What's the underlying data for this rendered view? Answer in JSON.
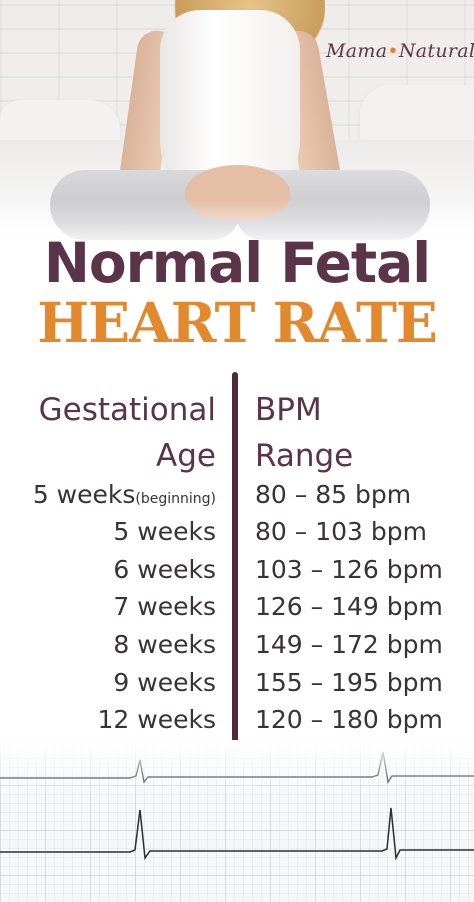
{
  "brand": {
    "logo_left": "Mama",
    "logo_dot": "•",
    "logo_right": "Natural"
  },
  "title": {
    "line1": "Normal Fetal",
    "line2": "HEART RATE"
  },
  "table": {
    "col_age_header_1": "Gestational",
    "col_age_header_2": "Age",
    "col_bpm_header_1": "BPM",
    "col_bpm_header_2": "Range",
    "rows": [
      {
        "age": "5 weeks",
        "note": "(beginning)",
        "bpm": "80 – 85 bpm"
      },
      {
        "age": "5 weeks",
        "note": "",
        "bpm": "80 – 103 bpm"
      },
      {
        "age": "6 weeks",
        "note": "",
        "bpm": "103 – 126 bpm"
      },
      {
        "age": "7 weeks",
        "note": "",
        "bpm": "126 – 149 bpm"
      },
      {
        "age": "8 weeks",
        "note": "",
        "bpm": "149 – 172 bpm"
      },
      {
        "age": "9 weeks",
        "note": "",
        "bpm": "155 – 195 bpm"
      },
      {
        "age": "12 weeks",
        "note": "",
        "bpm": "120 – 180 bpm"
      }
    ]
  },
  "colors": {
    "plum": "#5a3549",
    "orange": "#e2882d",
    "text": "#3a3236"
  }
}
